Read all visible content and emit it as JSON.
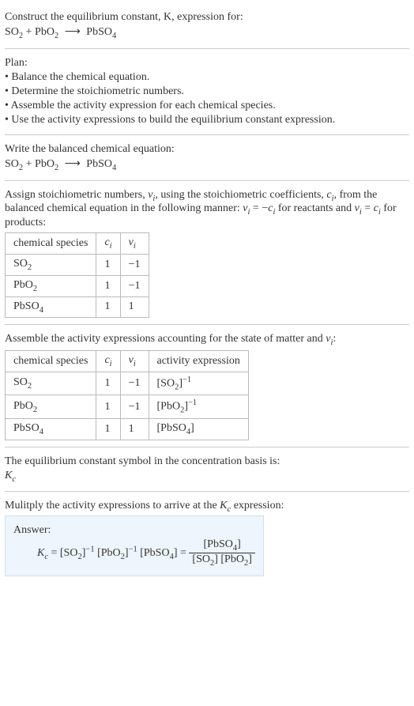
{
  "intro": {
    "title": "Construct the equilibrium constant, K, expression for:",
    "eq_html": "SO<span class='sub'>2</span> + PbO<span class='sub'>2</span> <span class='arrow'>⟶</span> PbSO<span class='sub'>4</span>"
  },
  "plan": {
    "title": "Plan:",
    "items": [
      "• Balance the chemical equation.",
      "• Determine the stoichiometric numbers.",
      "• Assemble the activity expression for each chemical species.",
      "• Use the activity expressions to build the equilibrium constant expression."
    ]
  },
  "balanced": {
    "title": "Write the balanced chemical equation:",
    "eq_html": "SO<span class='sub'>2</span> + PbO<span class='sub'>2</span> <span class='arrow'>⟶</span> PbSO<span class='sub'>4</span>"
  },
  "stoich": {
    "intro_html": "Assign stoichiometric numbers, <span class='italic'>ν<span class='sub'>i</span></span>, using the stoichiometric coefficients, <span class='italic'>c<span class='sub'>i</span></span>, from the balanced chemical equation in the following manner: <span class='italic'>ν<span class='sub'>i</span></span> = −<span class='italic'>c<span class='sub'>i</span></span> for reactants and <span class='italic'>ν<span class='sub'>i</span></span> = <span class='italic'>c<span class='sub'>i</span></span> for products:",
    "headers": [
      "chemical species",
      "c_i",
      "ν_i"
    ],
    "headers_html": [
      "chemical species",
      "<span class='italic'>c<span class='sub'>i</span></span>",
      "<span class='italic'>ν<span class='sub'>i</span></span>"
    ],
    "rows": [
      {
        "species_html": "SO<span class='sub'>2</span>",
        "c": "1",
        "v": "−1"
      },
      {
        "species_html": "PbO<span class='sub'>2</span>",
        "c": "1",
        "v": "−1"
      },
      {
        "species_html": "PbSO<span class='sub'>4</span>",
        "c": "1",
        "v": "1"
      }
    ]
  },
  "activity": {
    "intro_html": "Assemble the activity expressions accounting for the state of matter and <span class='italic'>ν<span class='sub'>i</span></span>:",
    "headers_html": [
      "chemical species",
      "<span class='italic'>c<span class='sub'>i</span></span>",
      "<span class='italic'>ν<span class='sub'>i</span></span>",
      "activity expression"
    ],
    "rows": [
      {
        "species_html": "SO<span class='sub'>2</span>",
        "c": "1",
        "v": "−1",
        "act_html": "[SO<span class='sub'>2</span>]<span class='sup'>−1</span>"
      },
      {
        "species_html": "PbO<span class='sub'>2</span>",
        "c": "1",
        "v": "−1",
        "act_html": "[PbO<span class='sub'>2</span>]<span class='sup'>−1</span>"
      },
      {
        "species_html": "PbSO<span class='sub'>4</span>",
        "c": "1",
        "v": "1",
        "act_html": "[PbSO<span class='sub'>4</span>]"
      }
    ]
  },
  "basis": {
    "line1": "The equilibrium constant symbol in the concentration basis is:",
    "symbol_html": "<span class='italic'>K<span class='sub'>c</span></span>"
  },
  "final": {
    "intro_html": "Mulitply the activity expressions to arrive at the <span class='italic'>K<span class='sub'>c</span></span> expression:",
    "answer_label": "Answer:",
    "lhs_html": "<span class='italic'>K<span class='sub'>c</span></span> = [SO<span class='sub'>2</span>]<span class='sup'>−1</span> [PbO<span class='sub'>2</span>]<span class='sup'>−1</span> [PbSO<span class='sub'>4</span>] = ",
    "frac_num_html": "[PbSO<span class='sub'>4</span>]",
    "frac_den_html": "[SO<span class='sub'>2</span>] [PbO<span class='sub'>2</span>]"
  },
  "colors": {
    "border": "#cccccc",
    "table_border": "#bbbbbb",
    "answer_bg": "#eef5fc",
    "answer_border": "#cfe0f0",
    "text": "#333333"
  }
}
